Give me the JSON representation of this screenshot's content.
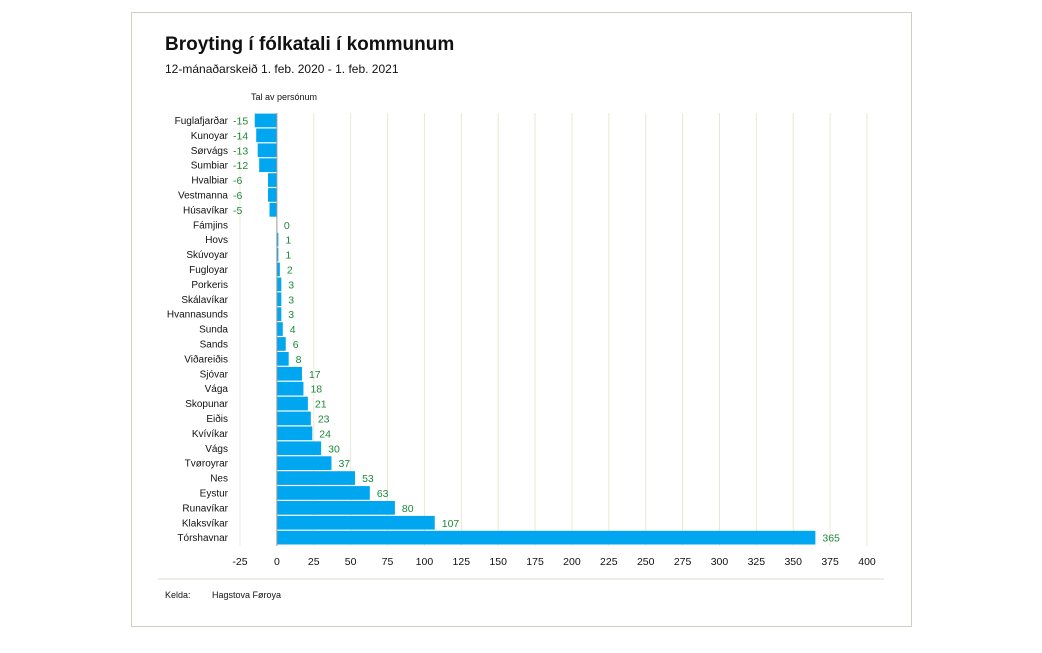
{
  "chart": {
    "title": "Broyting í fólkatali í kommunum",
    "subtitle": "12-mánaðarskeið 1. feb. 2020 - 1. feb. 2021",
    "unit_label": "Tal av persónum"
  },
  "source": {
    "label": "Kelda:",
    "value": "Hagstova Føroya"
  },
  "colors": {
    "bar": "#00a6f0",
    "value_label": "#1b8a3a",
    "grid": "#e8e8d8"
  },
  "chart_data": {
    "type": "bar",
    "orientation": "horizontal",
    "title": "Broyting í fólkatali í kommunum",
    "subtitle": "12-mánaðarskeið 1. feb. 2020 - 1. feb. 2021",
    "xlabel": "Tal av persónum",
    "ylabel": "",
    "xlim": [
      -25,
      400
    ],
    "xticks": [
      -25,
      0,
      25,
      50,
      75,
      100,
      125,
      150,
      175,
      200,
      225,
      250,
      275,
      300,
      325,
      350,
      375,
      400
    ],
    "grid": true,
    "categories": [
      "Fuglafjarðar",
      "Kunoyar",
      "Sørvágs",
      "Sumbiar",
      "Hvalbiar",
      "Vestmanna",
      "Húsavíkar",
      "Fámjins",
      "Hovs",
      "Skúvoyar",
      "Fugloyar",
      "Porkeris",
      "Skálavíkar",
      "Hvannasunds",
      "Sunda",
      "Sands",
      "Viðareiðis",
      "Sjóvar",
      "Vága",
      "Skopunar",
      "Eiðis",
      "Kvívíkar",
      "Vágs",
      "Tvøroyrar",
      "Nes",
      "Eystur",
      "Runavíkar",
      "Klaksvíkar",
      "Tórshavnar"
    ],
    "values": [
      -15,
      -14,
      -13,
      -12,
      -6,
      -6,
      -5,
      0,
      1,
      1,
      2,
      3,
      3,
      3,
      4,
      6,
      8,
      17,
      18,
      21,
      23,
      24,
      30,
      37,
      53,
      63,
      80,
      107,
      365
    ]
  }
}
